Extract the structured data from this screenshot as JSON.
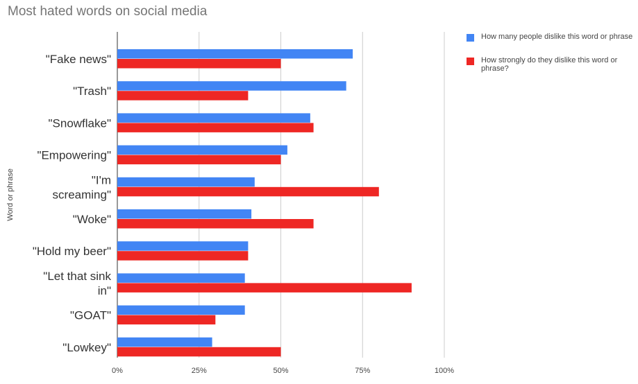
{
  "chart_data": {
    "type": "bar",
    "orientation": "horizontal",
    "title": "Most hated words on social media",
    "xlabel": "",
    "ylabel": "Word or phrase",
    "categories": [
      "\"Fake news\"",
      "\"Trash\"",
      "\"Snowflake\"",
      "\"Empowering\"",
      "\"I'm screaming\"",
      "\"Woke\"",
      "\"Hold my beer\"",
      "\"Let that sink in\"",
      "\"GOAT\"",
      "\"Lowkey\""
    ],
    "category_lines": [
      [
        "\"Fake news\""
      ],
      [
        "\"Trash\""
      ],
      [
        "\"Snowflake\""
      ],
      [
        "\"Empowering\""
      ],
      [
        "\"I'm",
        "screaming\""
      ],
      [
        "\"Woke\""
      ],
      [
        "\"Hold my beer\""
      ],
      [
        "\"Let that sink",
        "in\""
      ],
      [
        "\"GOAT\""
      ],
      [
        "\"Lowkey\""
      ]
    ],
    "series": [
      {
        "name": "How many people dislike this word or phrase",
        "color": "#4285f4",
        "values": [
          72,
          70,
          59,
          52,
          42,
          41,
          40,
          39,
          39,
          29
        ]
      },
      {
        "name": "How strongly do they dislike this word or phrase?",
        "color": "#ee2724",
        "values": [
          50,
          40,
          60,
          50,
          80,
          60,
          40,
          90,
          30,
          50
        ]
      }
    ],
    "xlim": [
      0,
      100
    ],
    "xticks": [
      "0%",
      "25%",
      "50%",
      "75%",
      "100%"
    ],
    "grid": true,
    "legend_position": "right"
  }
}
